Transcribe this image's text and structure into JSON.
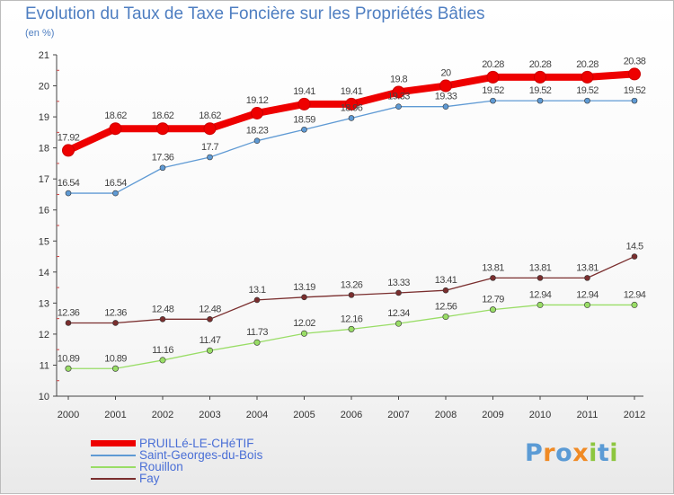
{
  "chart_data": {
    "type": "line",
    "title": "Evolution du Taux de Taxe Foncière sur les Propriétés Bâties",
    "subtitle": "(en %)",
    "categories": [
      "2000",
      "2001",
      "2002",
      "2003",
      "2004",
      "2005",
      "2006",
      "2007",
      "2008",
      "2009",
      "2010",
      "2011",
      "2012"
    ],
    "ylim": [
      10,
      21
    ],
    "yticks": [
      "10",
      "11",
      "12",
      "13",
      "14",
      "15",
      "16",
      "17",
      "18",
      "19",
      "20",
      "21"
    ],
    "grid": false,
    "legend_position": "bottom-left",
    "series": [
      {
        "name": "PRUILLé-LE-CHéTIF",
        "color": "#ee0000",
        "values": [
          17.92,
          18.62,
          18.62,
          18.62,
          19.12,
          19.41,
          19.41,
          19.8,
          20,
          20.28,
          20.28,
          20.28,
          20.38
        ],
        "labels": [
          "17.92",
          "18.62",
          "18.62",
          "18.62",
          "19.12",
          "19.41",
          "19.41",
          "19.8",
          "20",
          "20.28",
          "20.28",
          "20.28",
          "20.38"
        ]
      },
      {
        "name": "Saint-Georges-du-Bois",
        "color": "#5f9ad4",
        "values": [
          16.54,
          16.54,
          17.36,
          17.7,
          18.23,
          18.59,
          18.96,
          19.33,
          19.33,
          19.52,
          19.52,
          19.52,
          19.52
        ],
        "labels": [
          "16.54",
          "16.54",
          "17.36",
          "17.7",
          "18.23",
          "18.59",
          "18.96",
          "19.33",
          "19.33",
          "19.52",
          "19.52",
          "19.52",
          "19.52"
        ]
      },
      {
        "name": "Rouillon",
        "color": "#99dd66",
        "values": [
          10.89,
          10.89,
          11.16,
          11.47,
          11.73,
          12.02,
          12.16,
          12.34,
          12.56,
          12.79,
          12.94,
          12.94,
          12.94
        ],
        "labels": [
          "10.89",
          "10.89",
          "11.16",
          "11.47",
          "11.73",
          "12.02",
          "12.16",
          "12.34",
          "12.56",
          "12.79",
          "12.94",
          "12.94",
          "12.94"
        ]
      },
      {
        "name": "Fay",
        "color": "#7a2e2e",
        "values": [
          12.36,
          12.36,
          12.48,
          12.48,
          13.1,
          13.19,
          13.26,
          13.33,
          13.41,
          13.81,
          13.81,
          13.81,
          14.5
        ],
        "labels": [
          "12.36",
          "12.36",
          "12.48",
          "12.48",
          "13.1",
          "13.19",
          "13.26",
          "13.33",
          "13.41",
          "13.81",
          "13.81",
          "13.81",
          "14.5"
        ]
      }
    ]
  },
  "logo": {
    "text": "Proxiti",
    "letters": [
      "P",
      "r",
      "o",
      "x",
      "i",
      "t",
      "i"
    ],
    "colors": [
      "#5b9bd5",
      "#f08a24",
      "#5b9bd5",
      "#f08a24",
      "#8dc63f",
      "#5b9bd5",
      "#8dc63f"
    ]
  }
}
